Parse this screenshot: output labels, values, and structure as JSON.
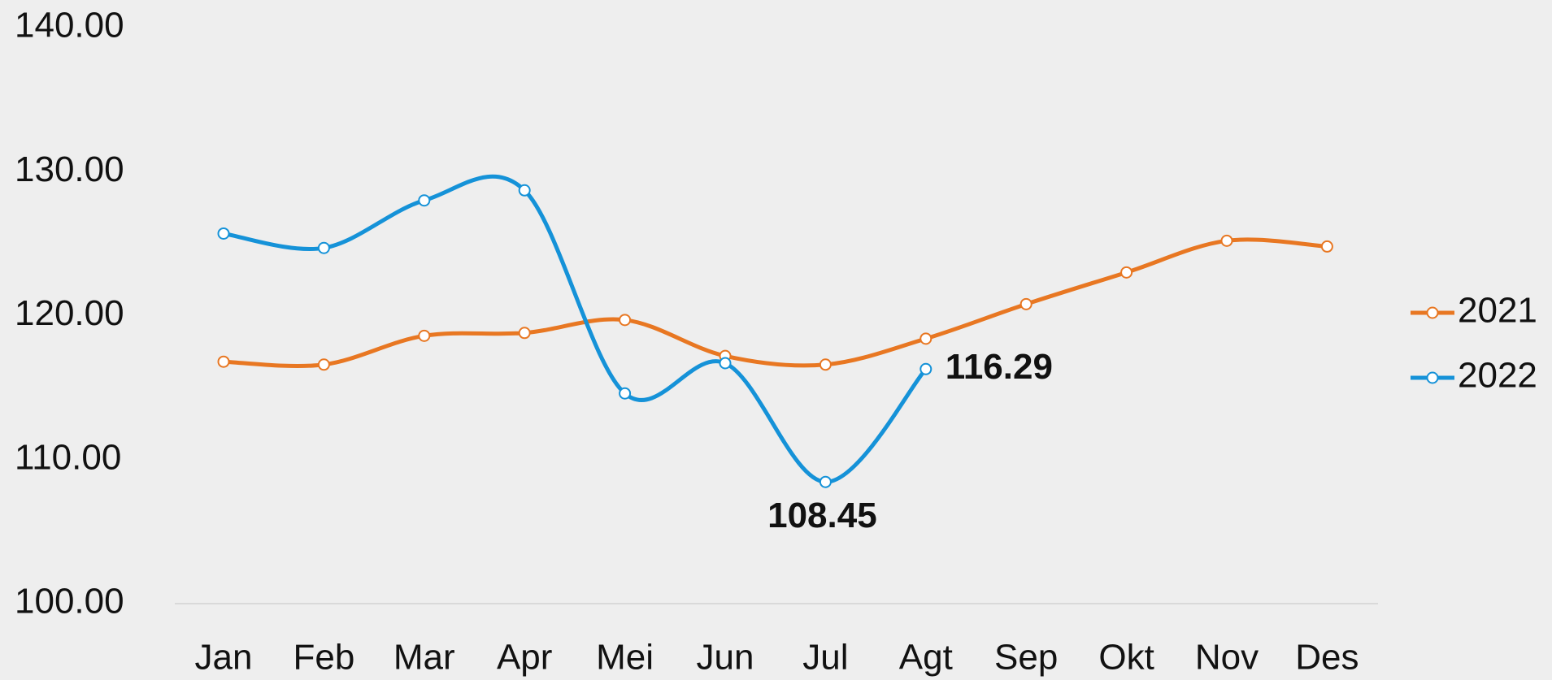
{
  "chart_data": {
    "type": "line",
    "categories": [
      "Jan",
      "Feb",
      "Mar",
      "Apr",
      "Mei",
      "Jun",
      "Jul",
      "Agt",
      "Sep",
      "Okt",
      "Nov",
      "Des"
    ],
    "series": [
      {
        "name": "2021",
        "color": "#e87722",
        "values": [
          116.8,
          116.6,
          118.6,
          118.8,
          119.7,
          117.2,
          116.6,
          118.4,
          120.8,
          123.0,
          125.2,
          124.8
        ]
      },
      {
        "name": "2022",
        "color": "#1592d8",
        "values": [
          125.7,
          124.7,
          128.0,
          128.7,
          114.6,
          116.7,
          108.45,
          116.29,
          null,
          null,
          null,
          null
        ],
        "value_labels": [
          null,
          null,
          null,
          null,
          null,
          null,
          "108.45",
          "116.29",
          null,
          null,
          null,
          null
        ]
      }
    ],
    "ylim": [
      100,
      140
    ],
    "yticks": [
      {
        "value": 100,
        "label": "100.00"
      },
      {
        "value": 110,
        "label": "110.00"
      },
      {
        "value": 120,
        "label": "120.00"
      },
      {
        "value": 130,
        "label": "130.00"
      },
      {
        "value": 140,
        "label": "140.00"
      }
    ],
    "legend": "right"
  }
}
